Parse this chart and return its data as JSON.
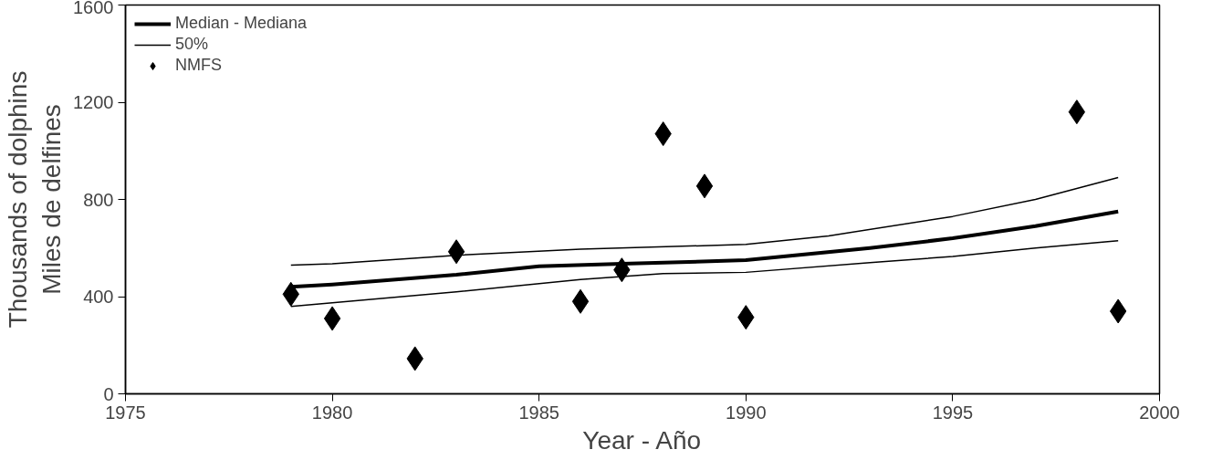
{
  "chart_data": {
    "type": "line",
    "xlabel": "Year - Año",
    "ylabel": "Thousands of dolphins\nMiles de delfines",
    "xlim": [
      1975,
      2000
    ],
    "xticks": [
      1975,
      1980,
      1985,
      1990,
      1995,
      2000
    ],
    "ylim": [
      0,
      1600
    ],
    "yticks": [
      0,
      400,
      800,
      1200,
      1600
    ],
    "grid": false,
    "legend": "top left",
    "series": [
      {
        "name": "Median - Mediana",
        "color": "#000000",
        "line_style": "solid",
        "x": [
          1979,
          1980,
          1983,
          1985,
          1987,
          1990,
          1993,
          1995,
          1997,
          1999
        ],
        "values": [
          440,
          450,
          490,
          525,
          535,
          550,
          600,
          640,
          690,
          750
        ]
      },
      {
        "name": "50%",
        "color": "#000000",
        "line_style": "solid",
        "x": [
          1979,
          1980,
          1983,
          1986,
          1990,
          1992,
          1995,
          1997,
          1999
        ],
        "values": [
          530,
          535,
          570,
          595,
          615,
          650,
          730,
          800,
          890
        ]
      },
      {
        "color": "#000000",
        "line_style": "solid",
        "x": [
          1979,
          1980,
          1983,
          1986,
          1988,
          1990,
          1993,
          1995,
          1997,
          1999
        ],
        "values": [
          360,
          375,
          420,
          470,
          495,
          500,
          540,
          565,
          600,
          630
        ]
      },
      {
        "name": "NMFS",
        "color": "#000000",
        "type": "scatter",
        "marker": "diamond",
        "x": [
          1979,
          1980,
          1982,
          1983,
          1986,
          1987,
          1988,
          1989,
          1990,
          1998,
          1999
        ],
        "values": [
          410,
          310,
          145,
          585,
          380,
          510,
          1070,
          855,
          315,
          1160,
          340
        ]
      }
    ]
  }
}
